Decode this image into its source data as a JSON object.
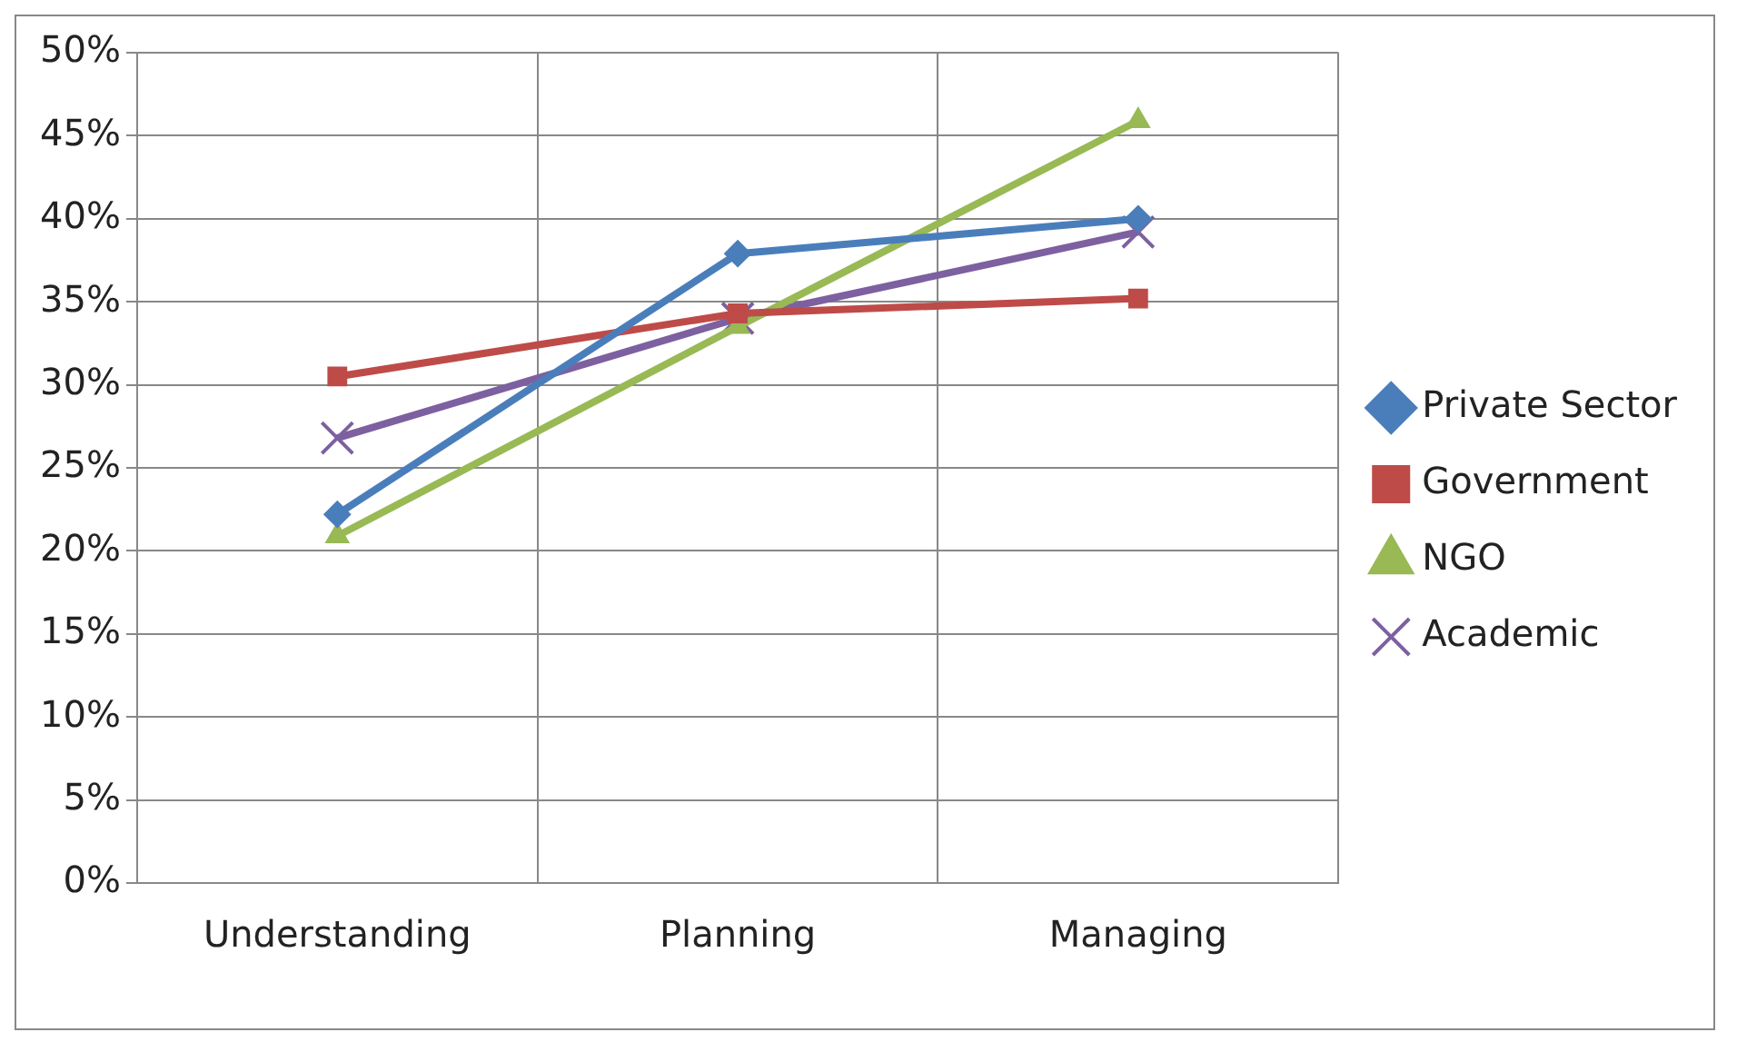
{
  "chart_data": {
    "type": "line",
    "categories": [
      "Understanding",
      "Planning",
      "Managing"
    ],
    "series": [
      {
        "name": "Private Sector",
        "color": "#4a7ebb",
        "marker": "diamond",
        "values": [
          22.2,
          37.9,
          40.0
        ]
      },
      {
        "name": "Government",
        "color": "#be4b48",
        "marker": "square",
        "values": [
          30.5,
          34.3,
          35.2
        ]
      },
      {
        "name": "NGO",
        "color": "#98b954",
        "marker": "triangle",
        "values": [
          20.9,
          33.5,
          45.9
        ]
      },
      {
        "name": "Academic",
        "color": "#7d60a0",
        "marker": "cross",
        "values": [
          26.8,
          34.0,
          39.2
        ]
      }
    ],
    "ylim": [
      0,
      50
    ],
    "yticks": [
      {
        "value": 0,
        "label": "0%"
      },
      {
        "value": 5,
        "label": "5%"
      },
      {
        "value": 10,
        "label": "10%"
      },
      {
        "value": 15,
        "label": "15%"
      },
      {
        "value": 20,
        "label": "20%"
      },
      {
        "value": 25,
        "label": "25%"
      },
      {
        "value": 30,
        "label": "30%"
      },
      {
        "value": 35,
        "label": "35%"
      },
      {
        "value": 40,
        "label": "40%"
      },
      {
        "value": 45,
        "label": "45%"
      },
      {
        "value": 50,
        "label": "50%"
      }
    ],
    "grid": true,
    "legend": "right",
    "line_style": "solid"
  }
}
